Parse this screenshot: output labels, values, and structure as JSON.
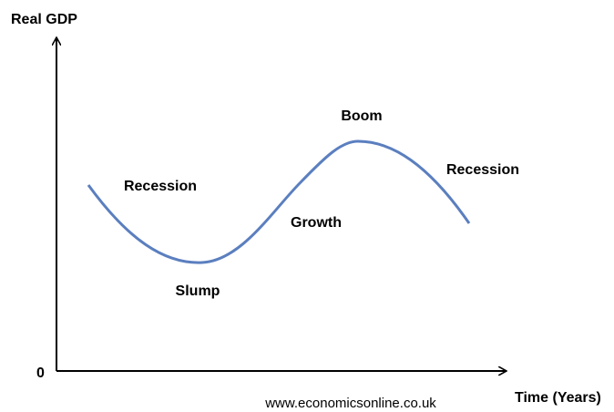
{
  "axes": {
    "y_label": "Real GDP",
    "origin": "0",
    "x_label": "Time (Years)"
  },
  "phases": [
    {
      "label": "Recession"
    },
    {
      "label": "Slump"
    },
    {
      "label": "Growth"
    },
    {
      "label": "Boom"
    },
    {
      "label": "Recession"
    }
  ],
  "source": "www.economicsonline.co.uk"
}
